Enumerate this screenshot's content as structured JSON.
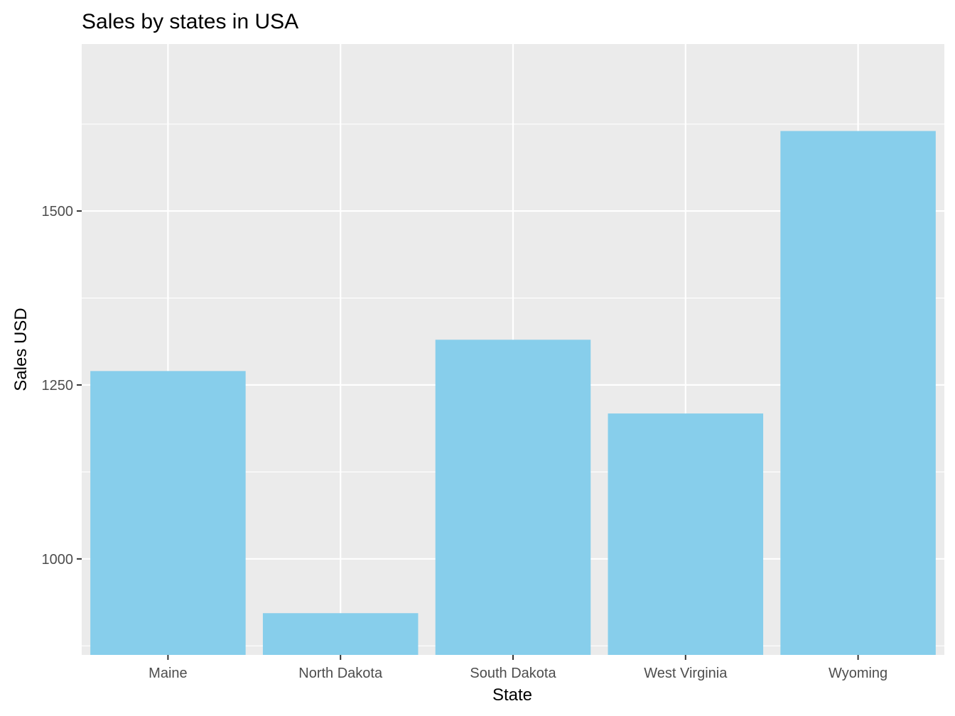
{
  "chart_data": {
    "type": "bar",
    "title": "Sales by states in USA",
    "xlabel": "State",
    "ylabel": "Sales USD",
    "categories": [
      "Maine",
      "North Dakota",
      "South Dakota",
      "West Virginia",
      "Wyoming"
    ],
    "values": [
      1270,
      922,
      1315,
      1209,
      1615
    ],
    "ylim": [
      862,
      1740
    ],
    "y_ticks": [
      1000,
      1250,
      1500
    ],
    "y_minor_ticks": [
      875,
      1125,
      1375,
      1625
    ],
    "grid": true,
    "legend": "none",
    "colors": {
      "bar": "#87ceeb",
      "panel": "#ebebeb",
      "grid": "#ffffff",
      "tick": "#333333"
    }
  }
}
